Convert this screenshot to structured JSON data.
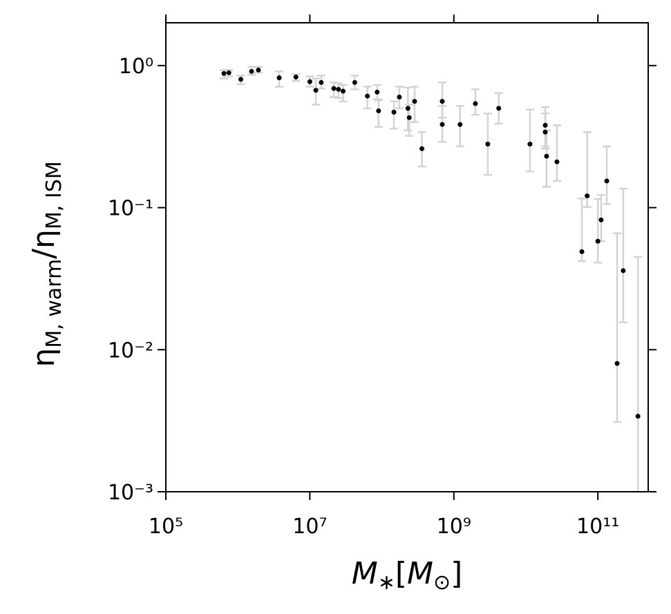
{
  "chart_data": {
    "type": "scatter",
    "xlabel": "M∗[M⊙]",
    "ylabel": "ηM, warm/ηM, ISM",
    "xscale": "log",
    "yscale": "log",
    "color": "#000000",
    "errorbar_color": "#d3d3d3",
    "xlim": [
      100000,
      500000000000
    ],
    "ylim": [
      0.001,
      2
    ],
    "xticks": [
      {
        "value": 100000,
        "label": "10⁵"
      },
      {
        "value": 10000000,
        "label": "10⁷"
      },
      {
        "value": 1000000000,
        "label": "10⁹"
      },
      {
        "value": 100000000000,
        "label": "10¹¹"
      }
    ],
    "yticks": [
      {
        "value": 0.001,
        "label": "10⁻³"
      },
      {
        "value": 0.01,
        "label": "10⁻²"
      },
      {
        "value": 0.1,
        "label": "10⁻¹"
      },
      {
        "value": 1,
        "label": "10⁰"
      }
    ],
    "x": [
      640000,
      750000,
      1100000,
      1550000,
      1930000,
      3750000,
      6400000,
      10000000,
      12100000,
      14400000,
      21500000,
      25000000,
      29000000,
      42000000,
      63000000,
      86000000,
      90000000,
      147000000,
      175000000,
      230000000,
      240000000,
      285000000,
      360000000,
      690000000,
      690000000,
      1220000000,
      1990000000,
      2960000000,
      4200000000,
      11400000000,
      18600000000,
      18600000000,
      19400000000,
      27000000000,
      60000000000,
      71000000000,
      100000000000,
      111000000000,
      133000000000,
      185000000000,
      225000000000,
      360000000000
    ],
    "values": [
      0.88,
      0.89,
      0.8,
      0.91,
      0.93,
      0.82,
      0.83,
      0.77,
      0.67,
      0.76,
      0.69,
      0.68,
      0.66,
      0.76,
      0.61,
      0.65,
      0.48,
      0.47,
      0.6,
      0.5,
      0.43,
      0.56,
      0.26,
      0.56,
      0.385,
      0.385,
      0.54,
      0.28,
      0.5,
      0.28,
      0.38,
      0.34,
      0.23,
      0.21,
      0.049,
      0.121,
      0.058,
      0.082,
      0.154,
      0.008,
      0.036,
      0.0034
    ],
    "y_lower": [
      0.81,
      0.84,
      0.74,
      0.86,
      0.89,
      0.71,
      0.78,
      0.71,
      0.53,
      0.69,
      0.6,
      0.59,
      0.56,
      0.68,
      0.5,
      0.58,
      0.37,
      0.36,
      0.5,
      0.35,
      0.32,
      0.4,
      0.195,
      0.43,
      0.29,
      0.27,
      0.45,
      0.17,
      0.39,
      0.18,
      0.27,
      0.26,
      0.14,
      0.154,
      0.042,
      0.101,
      0.041,
      0.058,
      0.106,
      0.0031,
      0.0156,
      0.0008
    ],
    "y_upper": [
      0.93,
      0.93,
      0.85,
      0.98,
      0.98,
      0.91,
      0.87,
      0.84,
      0.81,
      0.85,
      0.76,
      0.75,
      0.73,
      0.85,
      0.71,
      0.73,
      0.57,
      0.56,
      0.71,
      0.7,
      0.53,
      0.71,
      0.34,
      0.76,
      0.52,
      0.52,
      0.68,
      0.46,
      0.64,
      0.49,
      0.51,
      0.46,
      0.35,
      0.38,
      0.116,
      0.34,
      0.115,
      0.123,
      0.27,
      0.066,
      0.136,
      0.045
    ]
  }
}
